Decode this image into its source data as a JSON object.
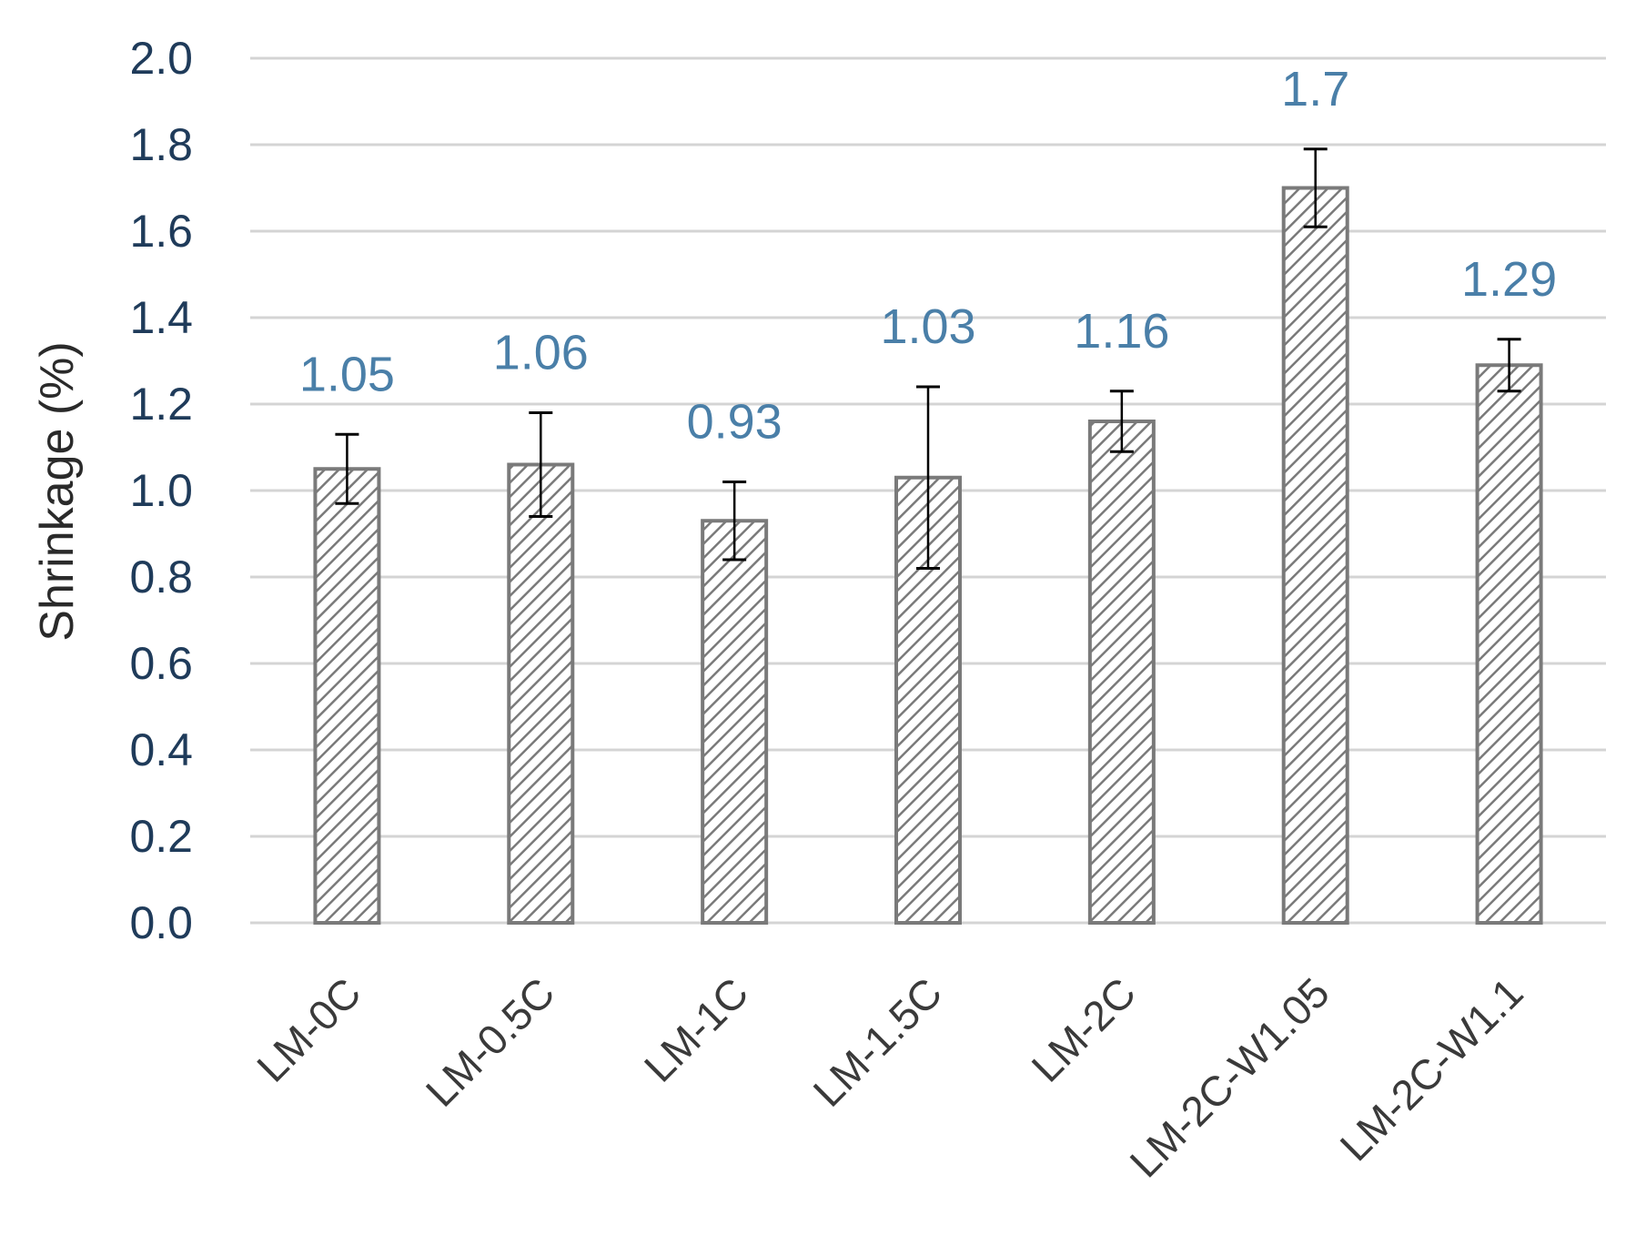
{
  "chart_data": {
    "type": "bar",
    "title": "",
    "xlabel": "",
    "ylabel": "Shrinkage (%)",
    "ylim": [
      0,
      2.0
    ],
    "y_ticks": [
      "0.0",
      "0.2",
      "0.4",
      "0.6",
      "0.8",
      "1.0",
      "1.2",
      "1.4",
      "1.6",
      "1.8",
      "2.0"
    ],
    "grid": true,
    "legend": "none",
    "categories": [
      "LM-0C",
      "LM-0.5C",
      "LM-1C",
      "LM-1.5C",
      "LM-2C",
      "LM-2C-W1.05",
      "LM-2C-W1.1"
    ],
    "values": [
      1.05,
      1.06,
      0.93,
      1.03,
      1.16,
      1.7,
      1.29
    ],
    "data_labels": [
      "1.05",
      "1.06",
      "0.93",
      "1.03",
      "1.16",
      "1.7",
      "1.29"
    ],
    "error": [
      0.08,
      0.12,
      0.09,
      0.21,
      0.07,
      0.09,
      0.06
    ],
    "bar_fill": "hatched",
    "colors": {
      "bar_stroke": "#7a7a7a",
      "hatch": "#7a7a7a",
      "grid": "#d4d4d4",
      "data_label": "#4a7fa8",
      "y_tick": "#1f3b5a",
      "error_bar": "#000000"
    }
  }
}
